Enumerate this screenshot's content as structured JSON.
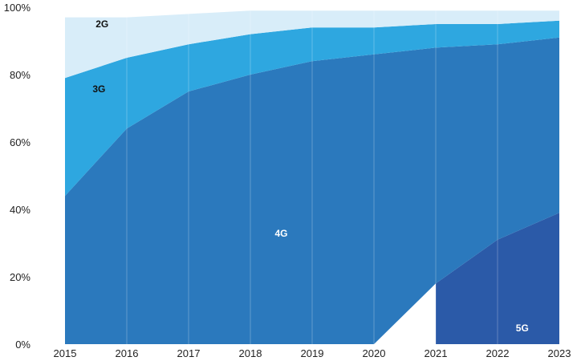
{
  "chart_data": {
    "type": "area",
    "stacked": true,
    "x": [
      "2015",
      "2016",
      "2017",
      "2018",
      "2019",
      "2020",
      "2021",
      "2022",
      "2023"
    ],
    "ylim": [
      0,
      100
    ],
    "yticks": [
      "0%",
      "20%",
      "40%",
      "60%",
      "80%",
      "100%"
    ],
    "grid": "vertical lines at each year",
    "legend": "none (series labeled inside areas)",
    "series": [
      {
        "name": "5G",
        "values": [
          null,
          null,
          null,
          null,
          null,
          null,
          18,
          31,
          39
        ],
        "color": "#2b5aa8",
        "label_color": "#ffffff"
      },
      {
        "name": "4G",
        "values": [
          44,
          64,
          75,
          80,
          84,
          86,
          70,
          58,
          52
        ],
        "color": "#2b79bd",
        "label_color": "#ffffff"
      },
      {
        "name": "3G",
        "values": [
          35,
          21,
          14,
          12,
          10,
          8,
          7,
          6,
          5
        ],
        "color": "#2ea7e0",
        "label_color": "#111111"
      },
      {
        "name": "2G",
        "values": [
          18,
          12,
          9,
          7,
          5,
          5,
          4,
          4,
          3
        ],
        "color": "#d8edf9",
        "label_color": "#111111"
      }
    ]
  }
}
